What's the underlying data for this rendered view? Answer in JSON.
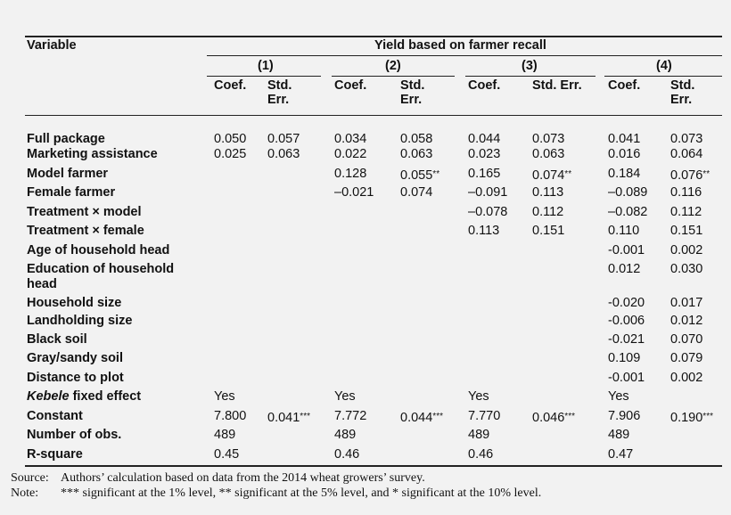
{
  "header": {
    "variable": "Variable",
    "group_title": "Yield based on farmer recall",
    "models": [
      "(1)",
      "(2)",
      "(3)",
      "(4)"
    ],
    "coef": "Coef.",
    "stderr_std": "Std.",
    "stderr_err": "Err.",
    "stderr_full": "Std. Err."
  },
  "rows": [
    {
      "label": "Full package",
      "cells": [
        "0.050",
        "0.057",
        "0.034",
        "0.058",
        "0.044",
        "0.073",
        "0.041",
        "0.073"
      ]
    },
    {
      "label": "Marketing assistance",
      "cells": [
        "0.025",
        "0.063",
        "0.022",
        "0.063",
        "0.023",
        "0.063",
        "0.016",
        "0.064"
      ]
    },
    {
      "label": "Model farmer",
      "cells": [
        "",
        "",
        "0.128",
        "0.055**",
        "0.165",
        "0.074**",
        "0.184",
        "0.076**"
      ]
    },
    {
      "label": "Female farmer",
      "cells": [
        "",
        "",
        "–0.021",
        "0.074",
        "–0.091",
        "0.113",
        "–0.089",
        "0.116"
      ]
    },
    {
      "label": "Treatment × model",
      "cells": [
        "",
        "",
        "",
        "",
        "–0.078",
        "0.112",
        "–0.082",
        "0.112"
      ]
    },
    {
      "label": "Treatment × female",
      "cells": [
        "",
        "",
        "",
        "",
        "0.113",
        "0.151",
        "0.110",
        "0.151"
      ]
    },
    {
      "label": "Age of household head",
      "cells": [
        "",
        "",
        "",
        "",
        "",
        "",
        "-0.001",
        "0.002"
      ]
    },
    {
      "label": "Education of household",
      "label2": "head",
      "cells": [
        "",
        "",
        "",
        "",
        "",
        "",
        "0.012",
        "0.030"
      ]
    },
    {
      "label": "Household size",
      "cells": [
        "",
        "",
        "",
        "",
        "",
        "",
        "-0.020",
        "0.017"
      ]
    },
    {
      "label": "Landholding size",
      "cells": [
        "",
        "",
        "",
        "",
        "",
        "",
        "-0.006",
        "0.012"
      ]
    },
    {
      "label": "Black soil",
      "cells": [
        "",
        "",
        "",
        "",
        "",
        "",
        "-0.021",
        "0.070"
      ]
    },
    {
      "label": "Gray/sandy soil",
      "cells": [
        "",
        "",
        "",
        "",
        "",
        "",
        "0.109",
        "0.079"
      ]
    },
    {
      "label": "Distance to plot",
      "cells": [
        "",
        "",
        "",
        "",
        "",
        "",
        "-0.001",
        "0.002"
      ]
    },
    {
      "label_italic": "Kebele",
      "label_rest": " fixed effect",
      "cells": [
        "Yes",
        "",
        "Yes",
        "",
        "Yes",
        "",
        "Yes",
        ""
      ]
    },
    {
      "label": "Constant",
      "cells": [
        "7.800",
        "0.041***",
        "7.772",
        "0.044***",
        "7.770",
        "0.046***",
        "7.906",
        "0.190***"
      ]
    },
    {
      "label": "Number of obs.",
      "cells": [
        "489",
        "",
        "489",
        "",
        "489",
        "",
        "489",
        ""
      ]
    },
    {
      "label": "R-square",
      "cells": [
        "0.45",
        "",
        "0.46",
        "",
        "0.46",
        "",
        "0.47",
        ""
      ]
    }
  ],
  "footer": {
    "source_label": "Source:",
    "source_text": "Authors’ calculation based on data from the 2014 wheat growers’ survey.",
    "note_label": "Note:",
    "note_text": "*** significant at the 1% level, ** significant at the 5% level, and * significant at the 10% level."
  }
}
